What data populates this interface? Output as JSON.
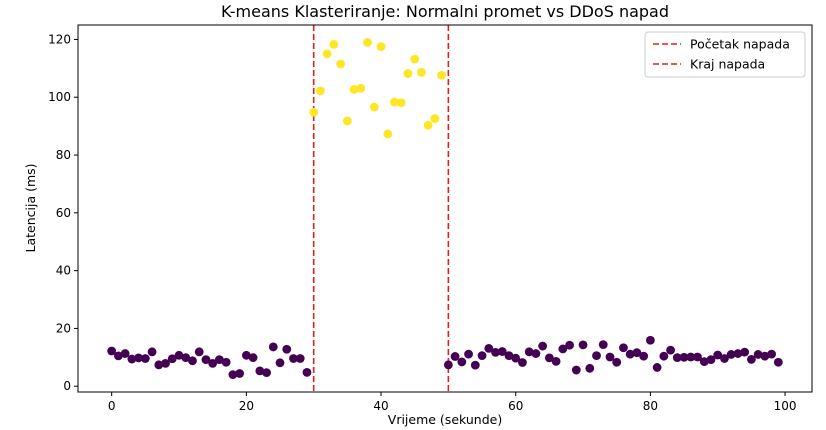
{
  "chart_data": {
    "type": "scatter",
    "title": "K-means Klasteriranje: Normalni promet vs DDoS napad",
    "xlabel": "Vrijeme (sekunde)",
    "ylabel": "Latencija (ms)",
    "xlim": [
      -5,
      104
    ],
    "ylim": [
      -2,
      125
    ],
    "xticks": [
      "0",
      "20",
      "40",
      "60",
      "80",
      "100"
    ],
    "yticks": [
      "0",
      "20",
      "40",
      "60",
      "80",
      "100",
      "120"
    ],
    "grid": false,
    "legend_position": "top-right",
    "vlines": [
      {
        "x": 30,
        "label": "Početak napada",
        "color": "#e4201b",
        "style": "dashed"
      },
      {
        "x": 50,
        "label": "Kraj napada",
        "color": "#e4201b",
        "style": "dashed"
      }
    ],
    "clusters": [
      {
        "color": "#440154",
        "points": [
          [
            0,
            12.2
          ],
          [
            1,
            10.5
          ],
          [
            2,
            11.3
          ],
          [
            3,
            9.4
          ],
          [
            4,
            9.8
          ],
          [
            5,
            9.6
          ],
          [
            6,
            11.9
          ],
          [
            7,
            7.4
          ],
          [
            8,
            7.9
          ],
          [
            9,
            9.5
          ],
          [
            10,
            10.7
          ],
          [
            11,
            9.9
          ],
          [
            12,
            8.8
          ],
          [
            13,
            11.9
          ],
          [
            14,
            9.2
          ],
          [
            15,
            7.9
          ],
          [
            16,
            9.2
          ],
          [
            17,
            8.3
          ],
          [
            18,
            4.0
          ],
          [
            19,
            4.4
          ],
          [
            20,
            10.7
          ],
          [
            21,
            9.9
          ],
          [
            22,
            5.3
          ],
          [
            23,
            4.7
          ],
          [
            24,
            13.6
          ],
          [
            25,
            8.1
          ],
          [
            26,
            12.8
          ],
          [
            27,
            9.6
          ],
          [
            28,
            9.6
          ],
          [
            29,
            4.8
          ],
          [
            50,
            7.4
          ],
          [
            51,
            10.3
          ],
          [
            52,
            8.4
          ],
          [
            53,
            11.1
          ],
          [
            54,
            7.3
          ],
          [
            55,
            10.6
          ],
          [
            56,
            13.1
          ],
          [
            57,
            11.7
          ],
          [
            58,
            12.0
          ],
          [
            59,
            10.6
          ],
          [
            60,
            9.7
          ],
          [
            61,
            8.2
          ],
          [
            62,
            11.9
          ],
          [
            63,
            11.3
          ],
          [
            64,
            13.9
          ],
          [
            65,
            9.8
          ],
          [
            66,
            8.6
          ],
          [
            67,
            12.9
          ],
          [
            68,
            14.2
          ],
          [
            69,
            5.6
          ],
          [
            70,
            14.3
          ],
          [
            71,
            6.2
          ],
          [
            72,
            10.6
          ],
          [
            73,
            14.4
          ],
          [
            74,
            10.1
          ],
          [
            75,
            8.3
          ],
          [
            76,
            13.3
          ],
          [
            77,
            11.1
          ],
          [
            78,
            11.6
          ],
          [
            79,
            10.4
          ],
          [
            80,
            15.9
          ],
          [
            81,
            6.5
          ],
          [
            82,
            10.4
          ],
          [
            83,
            12.5
          ],
          [
            84,
            9.9
          ],
          [
            85,
            10.0
          ],
          [
            86,
            10.1
          ],
          [
            87,
            10.1
          ],
          [
            88,
            8.5
          ],
          [
            89,
            9.2
          ],
          [
            90,
            10.8
          ],
          [
            91,
            9.6
          ],
          [
            92,
            11.0
          ],
          [
            93,
            11.3
          ],
          [
            94,
            11.8
          ],
          [
            95,
            9.3
          ],
          [
            96,
            11.0
          ],
          [
            97,
            10.4
          ],
          [
            98,
            11.1
          ],
          [
            99,
            8.3
          ]
        ]
      },
      {
        "color": "#fde725",
        "points": [
          [
            30,
            94.8
          ],
          [
            31,
            102.2
          ],
          [
            32,
            115.0
          ],
          [
            33,
            118.3
          ],
          [
            34,
            111.5
          ],
          [
            35,
            91.8
          ],
          [
            36,
            102.7
          ],
          [
            37,
            103.1
          ],
          [
            38,
            119.0
          ],
          [
            39,
            96.6
          ],
          [
            40,
            117.5
          ],
          [
            41,
            87.3
          ],
          [
            42,
            98.3
          ],
          [
            43,
            98.1
          ],
          [
            44,
            108.2
          ],
          [
            45,
            113.2
          ],
          [
            46,
            108.6
          ],
          [
            47,
            90.3
          ],
          [
            48,
            92.6
          ],
          [
            49,
            107.6
          ]
        ]
      }
    ]
  }
}
